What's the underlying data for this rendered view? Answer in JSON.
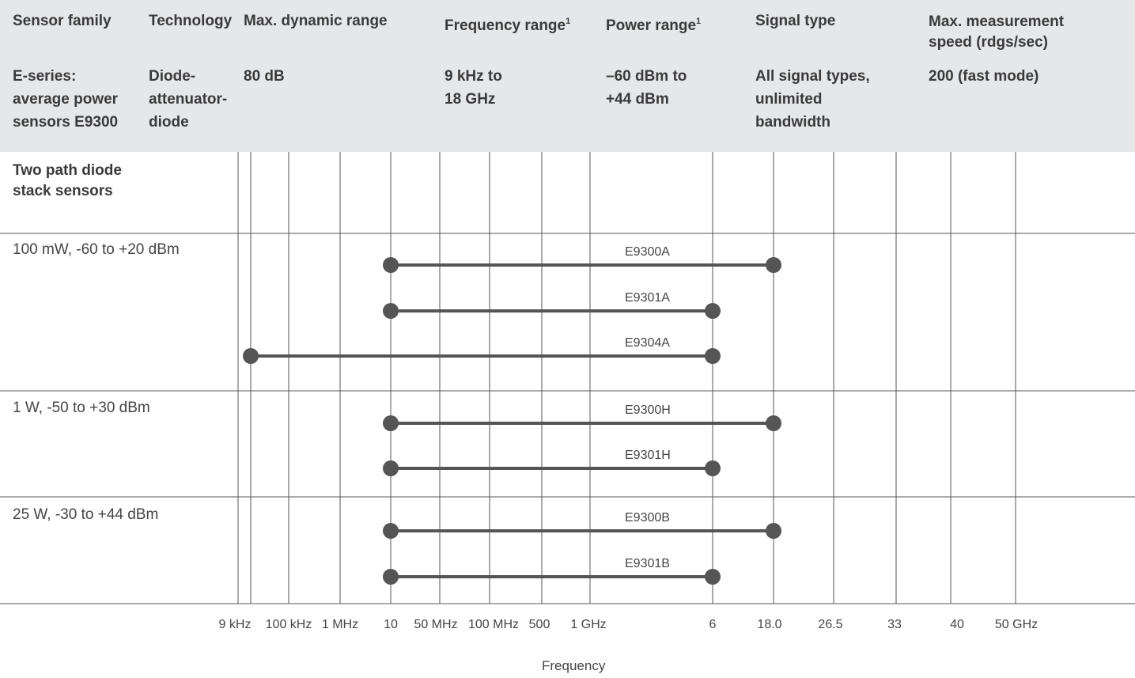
{
  "header": {
    "columns": [
      {
        "label": "Sensor  family",
        "value": "E-series:\naverage power\nsensors E9300"
      },
      {
        "label": "Technology",
        "value": "Diode-\nattenuator-\ndiode"
      },
      {
        "label": "Max. dynamic range",
        "value": "80 dB"
      },
      {
        "label": "Frequency range",
        "sup": "1",
        "value": "9 kHz to\n18 GHz"
      },
      {
        "label": "Power range",
        "sup": "1",
        "value": "–60 dBm to\n+44 dBm"
      },
      {
        "label": "Signal type",
        "value": "All signal types,\nunlimited\nbandwidth"
      },
      {
        "label": "Max. measurement\nspeed (rdgs/sec)",
        "value": "200 (fast mode)"
      }
    ]
  },
  "group_title": "Two path diode\nstack sensors",
  "power_groups": [
    "100 mW, -60 to +20 dBm",
    "1 W, -50 to +30 dBm",
    "25 W, -30 to +44 dBm"
  ],
  "chart_data": {
    "type": "range",
    "xlabel": "Frequency",
    "ticks": [
      "9 kHz",
      "100 kHz",
      "1 MHz",
      "10",
      "50 MHz",
      "100 MHz",
      "500",
      "1 GHz",
      "6",
      "18.0",
      "26.5",
      "33",
      "40",
      "50 GHz"
    ],
    "series": [
      {
        "name": "E9300A",
        "group": 0,
        "from": "10 MHz",
        "to": "18.0 GHz"
      },
      {
        "name": "E9301A",
        "group": 0,
        "from": "10 MHz",
        "to": "6 GHz"
      },
      {
        "name": "E9304A",
        "group": 0,
        "from": "9 kHz",
        "to": "6 GHz"
      },
      {
        "name": "E9300H",
        "group": 1,
        "from": "10 MHz",
        "to": "18.0 GHz"
      },
      {
        "name": "E9301H",
        "group": 1,
        "from": "10 MHz",
        "to": "6 GHz"
      },
      {
        "name": "E9300B",
        "group": 2,
        "from": "10 MHz",
        "to": "18.0 GHz"
      },
      {
        "name": "E9301B",
        "group": 2,
        "from": "10 MHz",
        "to": "6 GHz"
      }
    ],
    "colors": {
      "line": "#555555",
      "grid": "#555555"
    }
  }
}
